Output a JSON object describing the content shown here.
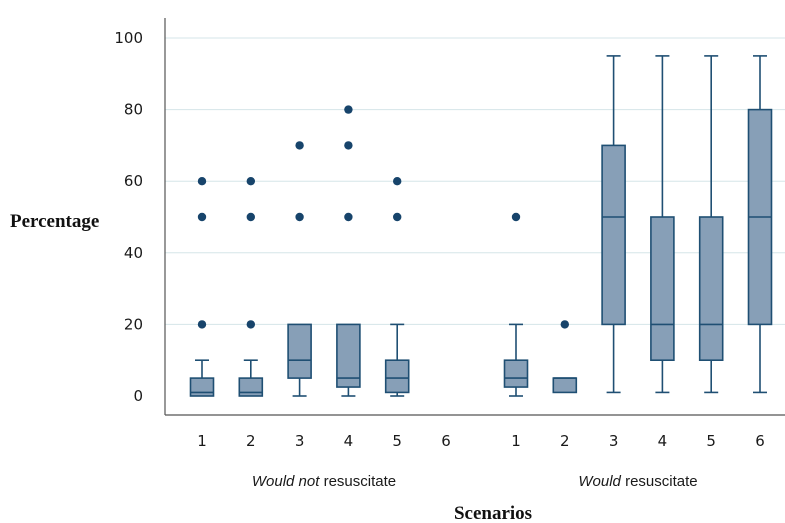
{
  "chart_data": {
    "type": "boxplot",
    "ylabel": "Percentage",
    "xlabel": "Scenarios",
    "ylim": [
      0,
      100
    ],
    "yticks": [
      0,
      20,
      40,
      60,
      80,
      100
    ],
    "grid": "horizontal",
    "colors": {
      "box_fill": "#879fb7",
      "box_stroke": "#1f4f73",
      "outlier": "#17446b",
      "grid": "#d5e5e8",
      "axis": "#555555"
    },
    "groups": [
      {
        "label_italic": "Would not",
        "label_rest": " resuscitate",
        "scenarios": [
          {
            "label": "1",
            "whisker_low": 0,
            "q1": 0,
            "median": 1,
            "q3": 5,
            "whisker_high": 10,
            "outliers": [
              20,
              50,
              60
            ]
          },
          {
            "label": "2",
            "whisker_low": 0,
            "q1": 0,
            "median": 1,
            "q3": 5,
            "whisker_high": 10,
            "outliers": [
              20,
              50,
              60
            ]
          },
          {
            "label": "3",
            "whisker_low": 0,
            "q1": 5,
            "median": 10,
            "q3": 20,
            "whisker_high": 20,
            "outliers": [
              50,
              70
            ]
          },
          {
            "label": "4",
            "whisker_low": 0,
            "q1": 2.5,
            "median": 5,
            "q3": 20,
            "whisker_high": 20,
            "outliers": [
              50,
              70,
              80
            ]
          },
          {
            "label": "5",
            "whisker_low": 0,
            "q1": 1,
            "median": 5,
            "q3": 10,
            "whisker_high": 20,
            "outliers": [
              50,
              60
            ]
          },
          {
            "label": "6"
          }
        ]
      },
      {
        "label_italic": "Would",
        "label_rest": " resuscitate",
        "scenarios": [
          {
            "label": "1",
            "whisker_low": 0,
            "q1": 2.5,
            "median": 5,
            "q3": 10,
            "whisker_high": 20,
            "outliers": [
              50
            ]
          },
          {
            "label": "2",
            "whisker_low": 1,
            "q1": 1,
            "median": 5,
            "q3": 5,
            "whisker_high": 5,
            "outliers": [
              20
            ]
          },
          {
            "label": "3",
            "whisker_low": 1,
            "q1": 20,
            "median": 50,
            "q3": 70,
            "whisker_high": 95,
            "outliers": []
          },
          {
            "label": "4",
            "whisker_low": 1,
            "q1": 10,
            "median": 20,
            "q3": 50,
            "whisker_high": 95,
            "outliers": []
          },
          {
            "label": "5",
            "whisker_low": 1,
            "q1": 10,
            "median": 20,
            "q3": 50,
            "whisker_high": 95,
            "outliers": []
          },
          {
            "label": "6",
            "whisker_low": 1,
            "q1": 20,
            "median": 50,
            "q3": 80,
            "whisker_high": 95,
            "outliers": []
          }
        ]
      }
    ]
  }
}
